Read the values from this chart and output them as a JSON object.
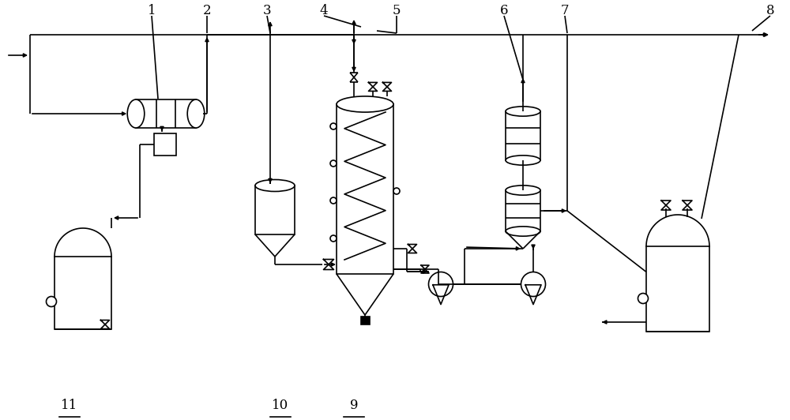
{
  "background": "#ffffff",
  "line_color": "#000000",
  "line_width": 1.2,
  "fig_width": 10.0,
  "fig_height": 5.32
}
